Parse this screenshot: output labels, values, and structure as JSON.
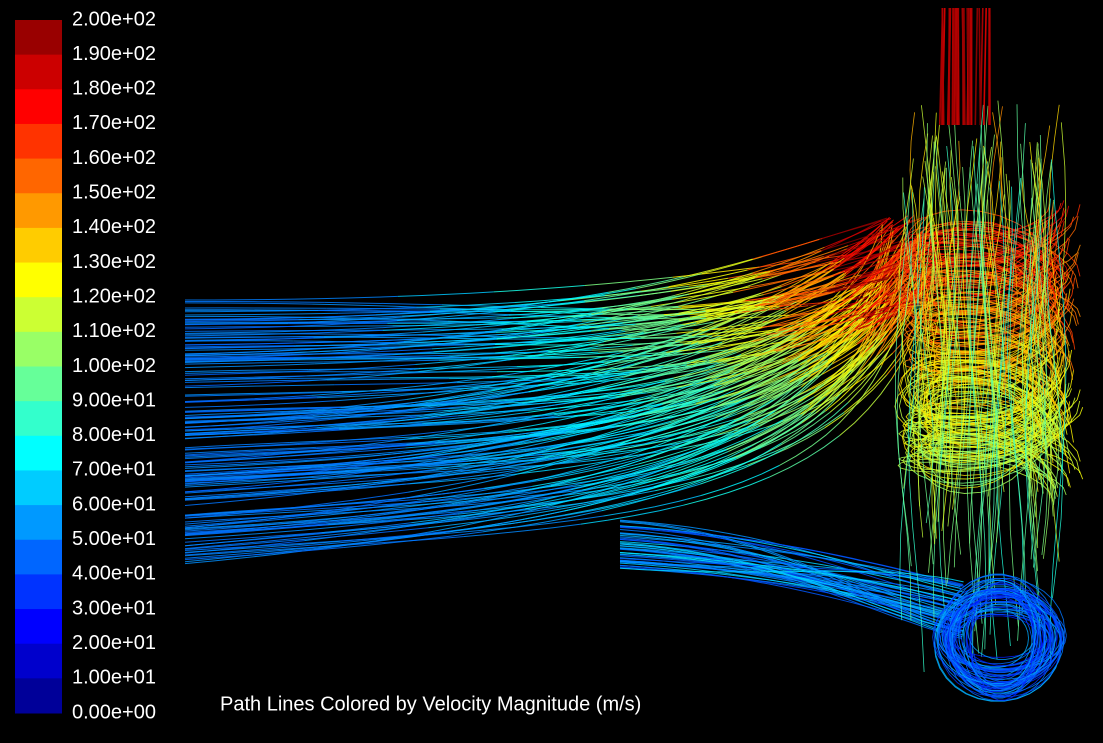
{
  "colorbar": {
    "labels": [
      "2.00e+02",
      "1.90e+02",
      "1.80e+02",
      "1.70e+02",
      "1.60e+02",
      "1.50e+02",
      "1.40e+02",
      "1.30e+02",
      "1.20e+02",
      "1.10e+02",
      "1.00e+02",
      "9.00e+01",
      "8.00e+01",
      "7.00e+01",
      "6.00e+01",
      "5.00e+01",
      "4.00e+01",
      "3.00e+01",
      "2.00e+01",
      "1.00e+01",
      "0.00e+00"
    ]
  },
  "caption": "Path Lines Colored by Velocity Magnitude (m/s)"
}
